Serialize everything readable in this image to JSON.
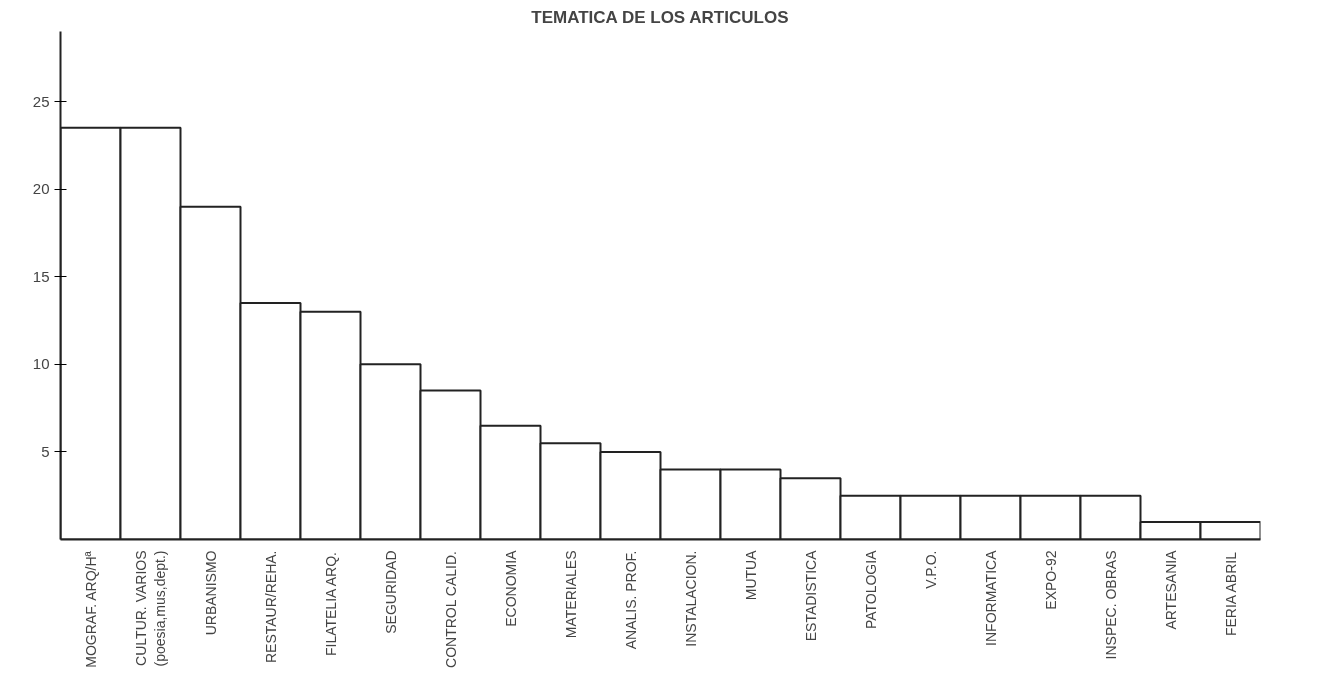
{
  "chart_data": {
    "type": "bar",
    "title": "TEMATICA DE LOS ARTICULOS",
    "categories": [
      "MOGRAF. ARQ/Hª",
      "CULTUR. VARIOS\n(poesia,mus,dept.)",
      "URBANISMO",
      "RESTAUR/REHA.",
      "FILATELIA ARQ.",
      "SEGURIDAD",
      "CONTROL CALID.",
      "ECONOMIA",
      "MATERIALES",
      "ANALIS. PROF.",
      "INSTALACION.",
      "MUTUA",
      "ESTADISTICA",
      "PATOLOGIA",
      "V.P.O.",
      "INFORMATICA",
      "EXPO-92",
      "INSPEC. OBRAS",
      "ARTESANIA",
      "FERIA ABRIL"
    ],
    "values": [
      23.5,
      23.5,
      19,
      13.5,
      13,
      10,
      8.5,
      6.5,
      5.5,
      5,
      4,
      4,
      3.5,
      2.5,
      2.5,
      2.5,
      2.5,
      2.5,
      1,
      1
    ],
    "color": "#ffffff",
    "ylim": [
      0,
      29
    ],
    "yticks": [
      5,
      10,
      15,
      20,
      25
    ],
    "grid": false
  }
}
